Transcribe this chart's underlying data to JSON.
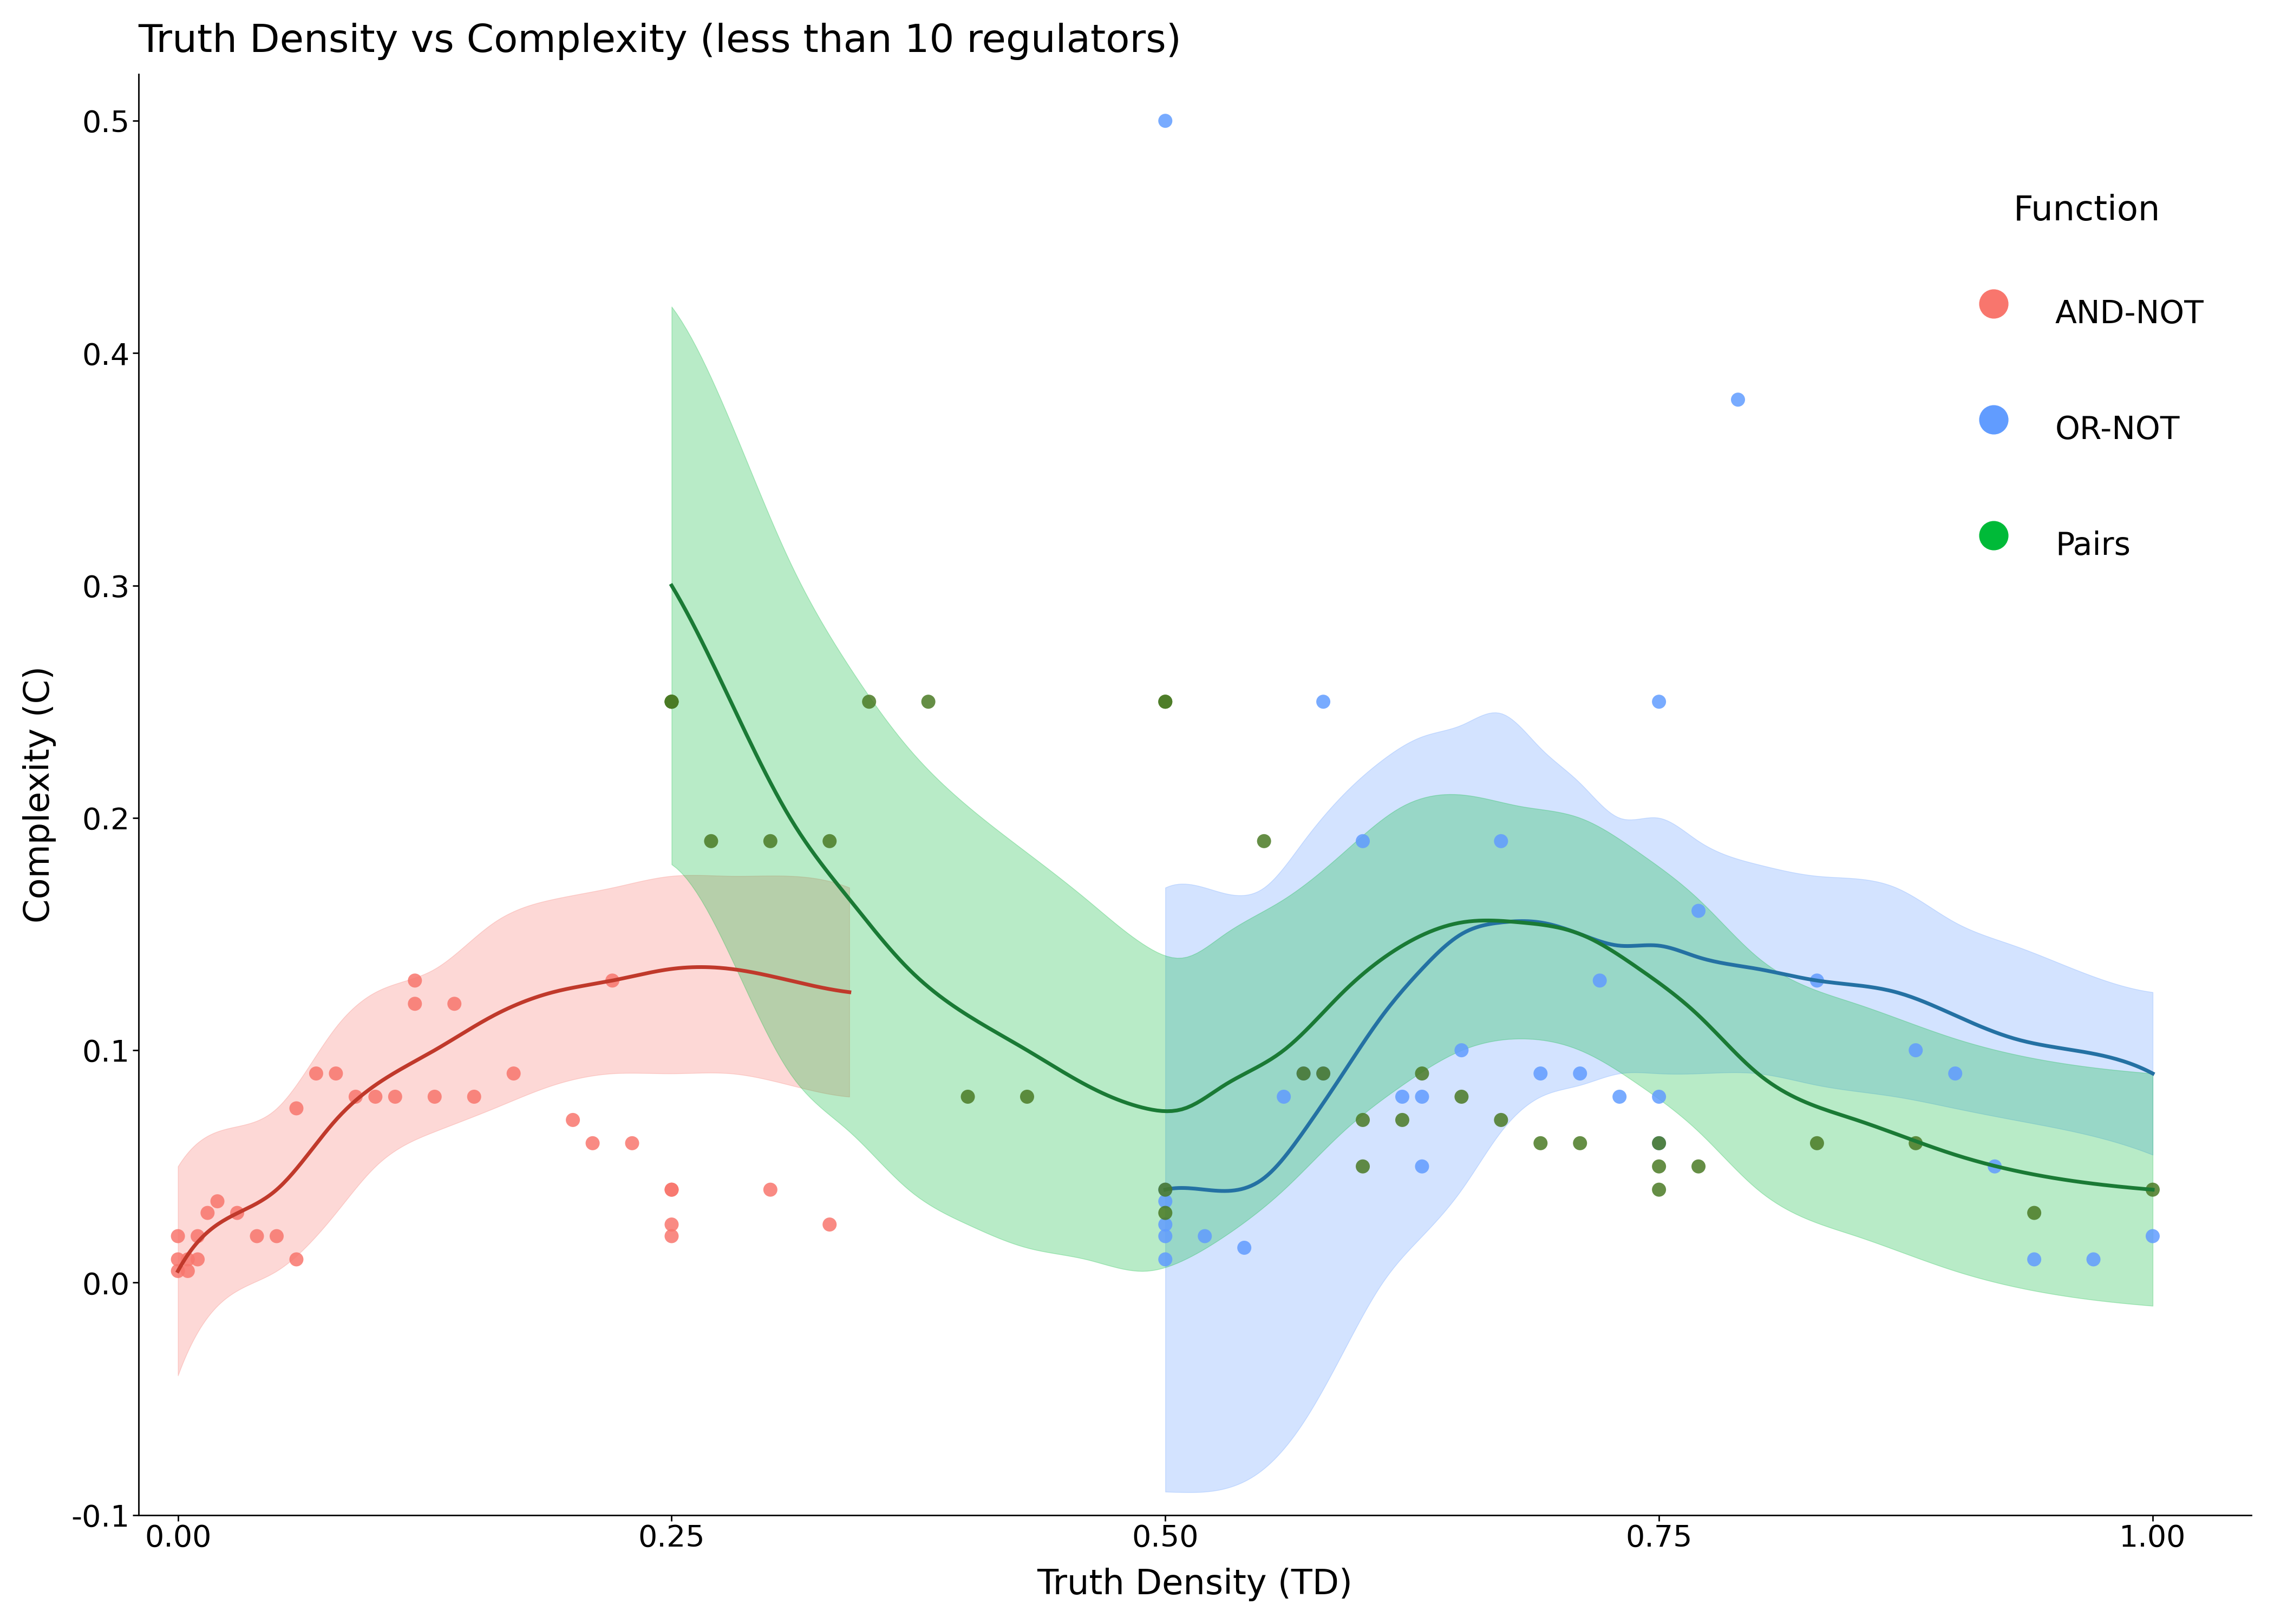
{
  "title": "Truth Density vs Complexity (less than 10 regulators)",
  "xlabel": "Truth Density (TD)",
  "ylabel": "Complexity (C)",
  "xlim": [
    -0.02,
    1.05
  ],
  "ylim": [
    -0.1,
    0.52
  ],
  "background_color": "#ffffff",
  "title_fontsize": 52,
  "label_fontsize": 46,
  "tick_fontsize": 40,
  "legend_title_fontsize": 46,
  "legend_fontsize": 42,
  "and_not": {
    "color": "#F8766D",
    "scatter_color": "#F8766D",
    "points_x": [
      0.0,
      0.0,
      0.0,
      0.005,
      0.005,
      0.01,
      0.01,
      0.015,
      0.02,
      0.03,
      0.04,
      0.05,
      0.06,
      0.06,
      0.07,
      0.08,
      0.09,
      0.1,
      0.11,
      0.12,
      0.12,
      0.13,
      0.14,
      0.15,
      0.17,
      0.2,
      0.21,
      0.22,
      0.23,
      0.25,
      0.25,
      0.25,
      0.25,
      0.3,
      0.33
    ],
    "points_y": [
      0.005,
      0.01,
      0.02,
      0.005,
      0.01,
      0.01,
      0.02,
      0.03,
      0.035,
      0.03,
      0.02,
      0.02,
      0.01,
      0.075,
      0.09,
      0.09,
      0.08,
      0.08,
      0.08,
      0.12,
      0.13,
      0.08,
      0.12,
      0.08,
      0.09,
      0.07,
      0.06,
      0.13,
      0.06,
      0.04,
      0.04,
      0.025,
      0.02,
      0.04,
      0.025
    ],
    "smooth_x": [
      0.0,
      0.02,
      0.05,
      0.08,
      0.1,
      0.13,
      0.16,
      0.19,
      0.22,
      0.25,
      0.28,
      0.31,
      0.34
    ],
    "smooth_y": [
      0.005,
      0.025,
      0.04,
      0.07,
      0.085,
      0.1,
      0.115,
      0.125,
      0.13,
      0.135,
      0.135,
      0.13,
      0.125
    ],
    "band_lower": [
      -0.04,
      -0.01,
      0.005,
      0.03,
      0.05,
      0.065,
      0.075,
      0.085,
      0.09,
      0.09,
      0.09,
      0.085,
      0.08
    ],
    "band_upper": [
      0.05,
      0.065,
      0.075,
      0.11,
      0.125,
      0.135,
      0.155,
      0.165,
      0.17,
      0.175,
      0.175,
      0.175,
      0.17
    ]
  },
  "or_not": {
    "color": "#619CFF",
    "scatter_color": "#619CFF",
    "points_x": [
      0.5,
      0.5,
      0.5,
      0.5,
      0.5,
      0.5,
      0.52,
      0.54,
      0.56,
      0.57,
      0.58,
      0.58,
      0.6,
      0.62,
      0.63,
      0.63,
      0.65,
      0.67,
      0.69,
      0.71,
      0.72,
      0.73,
      0.75,
      0.75,
      0.75,
      0.77,
      0.79,
      0.83,
      0.88,
      0.9,
      0.92,
      0.94,
      0.97,
      1.0
    ],
    "points_y": [
      0.01,
      0.02,
      0.025,
      0.035,
      0.04,
      0.5,
      0.02,
      0.015,
      0.08,
      0.09,
      0.09,
      0.25,
      0.19,
      0.08,
      0.08,
      0.05,
      0.1,
      0.19,
      0.09,
      0.09,
      0.13,
      0.08,
      0.25,
      0.08,
      0.06,
      0.16,
      0.38,
      0.13,
      0.1,
      0.09,
      0.05,
      0.01,
      0.01,
      0.02
    ],
    "smooth_x": [
      0.5,
      0.52,
      0.55,
      0.57,
      0.59,
      0.61,
      0.63,
      0.65,
      0.67,
      0.69,
      0.71,
      0.73,
      0.75,
      0.77,
      0.8,
      0.83,
      0.87,
      0.9,
      0.93,
      0.96,
      1.0
    ],
    "smooth_y": [
      0.04,
      0.04,
      0.045,
      0.065,
      0.09,
      0.115,
      0.135,
      0.15,
      0.155,
      0.155,
      0.15,
      0.145,
      0.145,
      0.14,
      0.135,
      0.13,
      0.125,
      0.115,
      0.105,
      0.1,
      0.09
    ],
    "band_lower": [
      -0.09,
      -0.09,
      -0.08,
      -0.06,
      -0.03,
      0.0,
      0.02,
      0.04,
      0.065,
      0.08,
      0.085,
      0.09,
      0.09,
      0.09,
      0.09,
      0.085,
      0.08,
      0.075,
      0.07,
      0.065,
      0.055
    ],
    "band_upper": [
      0.17,
      0.17,
      0.17,
      0.19,
      0.21,
      0.225,
      0.235,
      0.24,
      0.245,
      0.23,
      0.215,
      0.2,
      0.2,
      0.19,
      0.18,
      0.175,
      0.17,
      0.155,
      0.145,
      0.135,
      0.125
    ]
  },
  "pairs": {
    "color": "#00BA38",
    "scatter_color": "#4a7a24",
    "points_x": [
      0.25,
      0.25,
      0.25,
      0.27,
      0.3,
      0.33,
      0.35,
      0.38,
      0.4,
      0.43,
      0.5,
      0.5,
      0.5,
      0.5,
      0.55,
      0.57,
      0.58,
      0.6,
      0.6,
      0.62,
      0.63,
      0.65,
      0.67,
      0.69,
      0.71,
      0.75,
      0.75,
      0.75,
      0.77,
      0.83,
      0.88,
      0.94,
      1.0
    ],
    "points_y": [
      0.25,
      0.25,
      0.25,
      0.19,
      0.19,
      0.19,
      0.25,
      0.25,
      0.08,
      0.08,
      0.25,
      0.25,
      0.04,
      0.03,
      0.19,
      0.09,
      0.09,
      0.07,
      0.05,
      0.07,
      0.09,
      0.08,
      0.07,
      0.06,
      0.06,
      0.06,
      0.05,
      0.04,
      0.05,
      0.06,
      0.06,
      0.03,
      0.04
    ],
    "smooth_x": [
      0.25,
      0.28,
      0.31,
      0.34,
      0.37,
      0.4,
      0.43,
      0.46,
      0.49,
      0.51,
      0.53,
      0.56,
      0.59,
      0.62,
      0.65,
      0.68,
      0.71,
      0.74,
      0.77,
      0.8,
      0.85,
      0.9,
      0.95,
      1.0
    ],
    "smooth_y": [
      0.3,
      0.25,
      0.2,
      0.165,
      0.135,
      0.115,
      0.1,
      0.085,
      0.075,
      0.075,
      0.085,
      0.1,
      0.125,
      0.145,
      0.155,
      0.155,
      0.15,
      0.135,
      0.115,
      0.09,
      0.07,
      0.055,
      0.045,
      0.04
    ],
    "band_lower": [
      0.18,
      0.14,
      0.09,
      0.065,
      0.04,
      0.025,
      0.015,
      0.01,
      0.005,
      0.01,
      0.02,
      0.04,
      0.065,
      0.085,
      0.1,
      0.105,
      0.1,
      0.085,
      0.065,
      0.04,
      0.02,
      0.005,
      -0.005,
      -0.01
    ],
    "band_upper": [
      0.42,
      0.37,
      0.31,
      0.265,
      0.23,
      0.205,
      0.185,
      0.165,
      0.145,
      0.14,
      0.15,
      0.165,
      0.185,
      0.205,
      0.21,
      0.205,
      0.2,
      0.185,
      0.165,
      0.14,
      0.12,
      0.105,
      0.095,
      0.09
    ]
  }
}
